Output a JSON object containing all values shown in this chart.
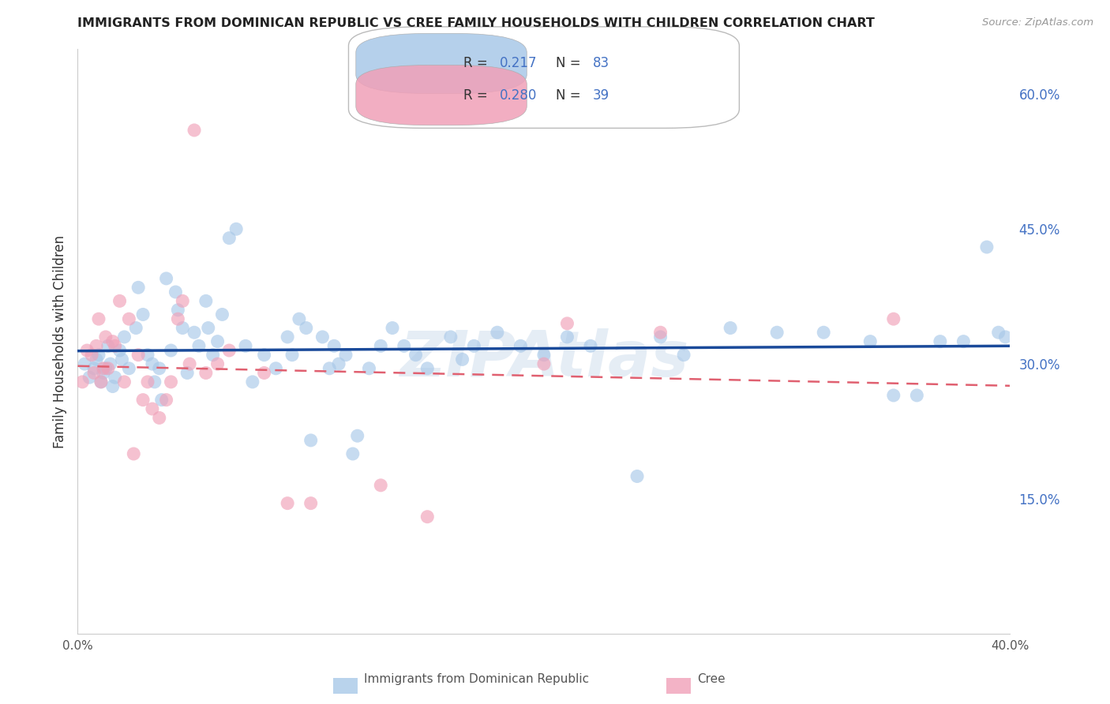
{
  "title": "IMMIGRANTS FROM DOMINICAN REPUBLIC VS CREE FAMILY HOUSEHOLDS WITH CHILDREN CORRELATION CHART",
  "source": "Source: ZipAtlas.com",
  "ylabel_left": "Family Households with Children",
  "x_min": 0.0,
  "x_max": 0.4,
  "y_min": 0.0,
  "y_max": 0.65,
  "right_yticks": [
    0.15,
    0.3,
    0.45,
    0.6
  ],
  "right_yticklabels": [
    "15.0%",
    "30.0%",
    "45.0%",
    "60.0%"
  ],
  "x_ticks": [
    0.0,
    0.05,
    0.1,
    0.15,
    0.2,
    0.25,
    0.3,
    0.35,
    0.4
  ],
  "x_ticklabels": [
    "0.0%",
    "",
    "",
    "",
    "",
    "",
    "",
    "",
    "40.0%"
  ],
  "watermark": "ZIPAtlas",
  "blue_scatter_color": "#a8c8e8",
  "pink_scatter_color": "#f0a0b8",
  "blue_line_color": "#1a4a9a",
  "pink_line_color": "#e06070",
  "title_color": "#222222",
  "source_color": "#999999",
  "right_tick_color": "#4472c4",
  "legend_text_color": "#4472c4",
  "grid_color": "#dddddd",
  "R_blue": "0.217",
  "N_blue": "83",
  "R_pink": "0.280",
  "N_pink": "39",
  "bottom_label_blue": "Immigrants from Dominican Republic",
  "bottom_label_pink": "Cree",
  "blue_x": [
    0.003,
    0.005,
    0.007,
    0.008,
    0.009,
    0.01,
    0.011,
    0.012,
    0.013,
    0.014,
    0.015,
    0.016,
    0.018,
    0.019,
    0.02,
    0.022,
    0.025,
    0.026,
    0.028,
    0.03,
    0.032,
    0.033,
    0.035,
    0.036,
    0.038,
    0.04,
    0.042,
    0.043,
    0.045,
    0.047,
    0.05,
    0.052,
    0.055,
    0.056,
    0.058,
    0.06,
    0.062,
    0.065,
    0.068,
    0.072,
    0.075,
    0.08,
    0.085,
    0.09,
    0.092,
    0.095,
    0.098,
    0.1,
    0.105,
    0.108,
    0.11,
    0.112,
    0.115,
    0.118,
    0.12,
    0.125,
    0.13,
    0.135,
    0.14,
    0.145,
    0.15,
    0.16,
    0.165,
    0.17,
    0.18,
    0.19,
    0.2,
    0.21,
    0.22,
    0.24,
    0.25,
    0.26,
    0.28,
    0.3,
    0.32,
    0.34,
    0.35,
    0.36,
    0.37,
    0.38,
    0.39,
    0.395,
    0.398
  ],
  "blue_y": [
    0.3,
    0.285,
    0.295,
    0.305,
    0.31,
    0.28,
    0.29,
    0.295,
    0.32,
    0.3,
    0.275,
    0.285,
    0.315,
    0.305,
    0.33,
    0.295,
    0.34,
    0.385,
    0.355,
    0.31,
    0.3,
    0.28,
    0.295,
    0.26,
    0.395,
    0.315,
    0.38,
    0.36,
    0.34,
    0.29,
    0.335,
    0.32,
    0.37,
    0.34,
    0.31,
    0.325,
    0.355,
    0.44,
    0.45,
    0.32,
    0.28,
    0.31,
    0.295,
    0.33,
    0.31,
    0.35,
    0.34,
    0.215,
    0.33,
    0.295,
    0.32,
    0.3,
    0.31,
    0.2,
    0.22,
    0.295,
    0.32,
    0.34,
    0.32,
    0.31,
    0.295,
    0.33,
    0.305,
    0.32,
    0.335,
    0.32,
    0.31,
    0.33,
    0.32,
    0.175,
    0.33,
    0.31,
    0.34,
    0.335,
    0.335,
    0.325,
    0.265,
    0.265,
    0.325,
    0.325,
    0.43,
    0.335,
    0.33
  ],
  "pink_x": [
    0.002,
    0.004,
    0.006,
    0.007,
    0.008,
    0.009,
    0.01,
    0.011,
    0.012,
    0.013,
    0.015,
    0.016,
    0.018,
    0.02,
    0.022,
    0.024,
    0.026,
    0.028,
    0.03,
    0.032,
    0.035,
    0.038,
    0.04,
    0.043,
    0.045,
    0.048,
    0.05,
    0.055,
    0.06,
    0.065,
    0.08,
    0.09,
    0.1,
    0.13,
    0.15,
    0.2,
    0.21,
    0.25,
    0.35
  ],
  "pink_y": [
    0.28,
    0.315,
    0.31,
    0.29,
    0.32,
    0.35,
    0.28,
    0.295,
    0.33,
    0.295,
    0.325,
    0.32,
    0.37,
    0.28,
    0.35,
    0.2,
    0.31,
    0.26,
    0.28,
    0.25,
    0.24,
    0.26,
    0.28,
    0.35,
    0.37,
    0.3,
    0.56,
    0.29,
    0.3,
    0.315,
    0.29,
    0.145,
    0.145,
    0.165,
    0.13,
    0.3,
    0.345,
    0.335,
    0.35
  ]
}
